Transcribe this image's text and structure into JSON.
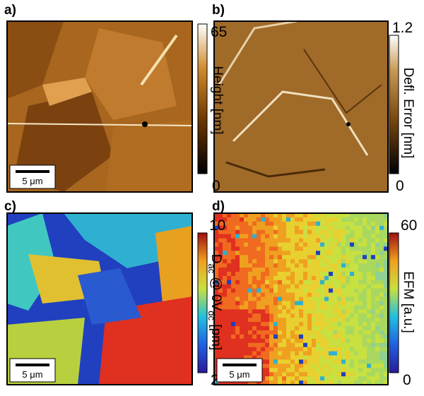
{
  "panels": [
    {
      "label": "a)",
      "colorbar_label": [
        "Height [nm]"
      ],
      "colorbar_max": 65,
      "colorbar_min": 0,
      "scale_bar": "5 μm"
    },
    {
      "label": "b)",
      "colorbar_label": [
        "Defl. Error [nm]"
      ],
      "colorbar_max": 1.2,
      "colorbar_min": 0
    },
    {
      "label": "c)",
      "colorbar_label": [
        "D",
        "ac",
        " @ 0V",
        "dc",
        " [pm]"
      ],
      "colorbar_max": 10,
      "colorbar_min": 2,
      "scale_bar": "5 μm"
    },
    {
      "label": "d)",
      "colorbar_label": [
        "EFM [a.u.]"
      ],
      "colorbar_max": 60,
      "colorbar_min": 0,
      "scale_bar": "5 μm"
    }
  ]
}
